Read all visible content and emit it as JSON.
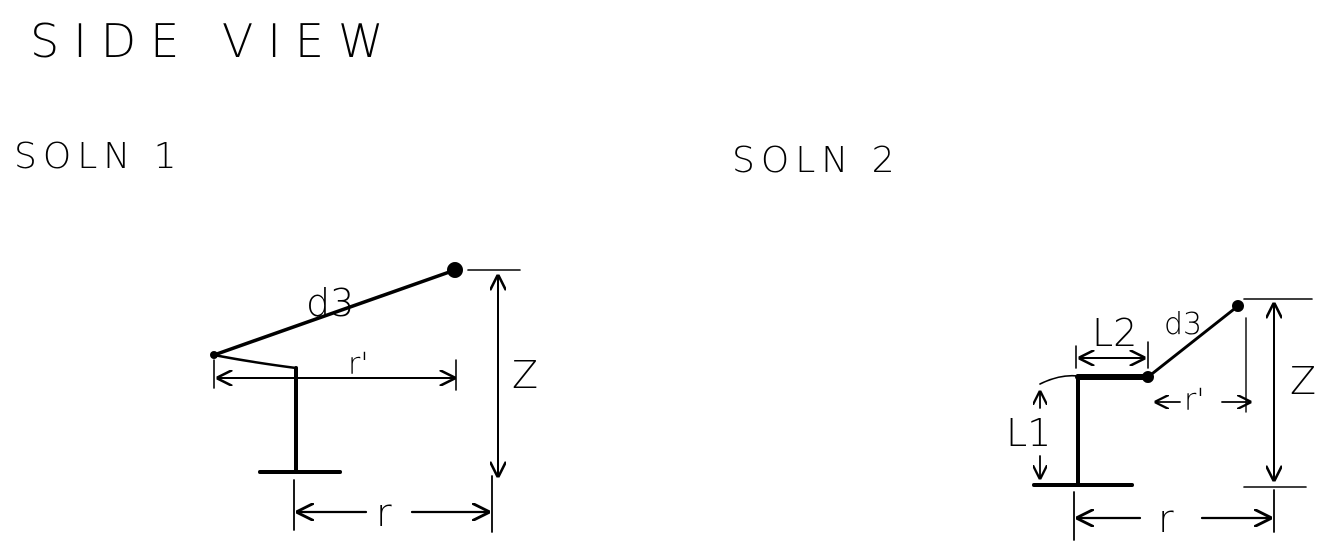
{
  "title": "SIDE VIEW",
  "solutions": [
    {
      "label": "SOLN 1",
      "dims": {
        "link": "d3",
        "reach_inner": "r'",
        "height": "Z",
        "reach": "r"
      }
    },
    {
      "label": "SOLN 2",
      "dims": {
        "link1": "L1",
        "link2": "L2",
        "link3": "d3",
        "reach_inner": "r'",
        "height": "Z",
        "reach": "r"
      }
    }
  ]
}
